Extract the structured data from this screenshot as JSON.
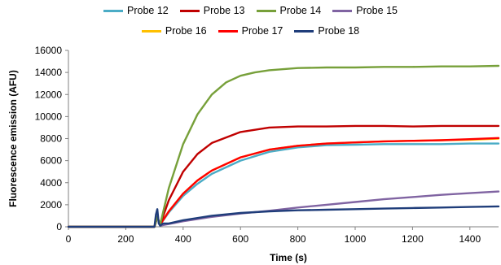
{
  "chart_data": {
    "type": "line",
    "xlabel": "Time (s)",
    "ylabel": "Fluorescence emission (AFU)",
    "xlim": [
      0,
      1500
    ],
    "ylim": [
      0,
      16000
    ],
    "x_ticks": [
      0,
      200,
      400,
      600,
      800,
      1000,
      1200,
      1400
    ],
    "y_ticks": [
      0,
      2000,
      4000,
      6000,
      8000,
      10000,
      12000,
      14000,
      16000
    ],
    "grid": false,
    "legend_placement": "top",
    "series": [
      {
        "name": "Probe 12",
        "color": "#4BACC6",
        "x": [
          0,
          300,
          310,
          320,
          350,
          400,
          450,
          500,
          600,
          700,
          800,
          900,
          1000,
          1100,
          1200,
          1300,
          1400,
          1500
        ],
        "y": [
          0,
          0,
          900,
          200,
          1300,
          2800,
          3900,
          4800,
          6000,
          6800,
          7200,
          7400,
          7450,
          7500,
          7500,
          7500,
          7550,
          7550
        ]
      },
      {
        "name": "Probe 13",
        "color": "#C00000",
        "x": [
          0,
          300,
          310,
          320,
          350,
          400,
          450,
          500,
          600,
          700,
          800,
          900,
          1000,
          1100,
          1200,
          1300,
          1400,
          1500
        ],
        "y": [
          0,
          0,
          900,
          200,
          2400,
          5000,
          6600,
          7600,
          8600,
          9000,
          9100,
          9100,
          9150,
          9150,
          9100,
          9150,
          9150,
          9150
        ]
      },
      {
        "name": "Probe 14",
        "color": "#77A03A",
        "x": [
          0,
          300,
          310,
          320,
          350,
          400,
          450,
          500,
          550,
          600,
          650,
          700,
          800,
          900,
          1000,
          1100,
          1200,
          1300,
          1400,
          1500
        ],
        "y": [
          0,
          0,
          900,
          200,
          3500,
          7500,
          10200,
          12000,
          13100,
          13700,
          14000,
          14200,
          14400,
          14450,
          14450,
          14500,
          14500,
          14550,
          14550,
          14600
        ]
      },
      {
        "name": "Probe 15",
        "color": "#8064A2",
        "x": [
          0,
          300,
          310,
          320,
          400,
          500,
          600,
          700,
          800,
          900,
          1000,
          1100,
          1200,
          1300,
          1400,
          1500
        ],
        "y": [
          0,
          0,
          900,
          100,
          500,
          900,
          1200,
          1450,
          1750,
          2000,
          2250,
          2500,
          2700,
          2900,
          3050,
          3200
        ]
      },
      {
        "name": "Probe 16",
        "color": "#FFC000",
        "x": [
          0,
          300,
          310,
          320,
          350,
          400,
          450,
          500,
          600,
          700,
          800,
          900,
          1000,
          1100,
          1200,
          1300,
          1400,
          1500
        ],
        "y": [
          0,
          0,
          900,
          200,
          1400,
          3000,
          4200,
          5100,
          6300,
          7000,
          7350,
          7550,
          7650,
          7750,
          7800,
          7850,
          7900,
          8000
        ]
      },
      {
        "name": "Probe 17",
        "color": "#FF0000",
        "x": [
          0,
          300,
          310,
          320,
          350,
          400,
          450,
          500,
          600,
          700,
          800,
          900,
          1000,
          1100,
          1200,
          1300,
          1400,
          1500
        ],
        "y": [
          0,
          0,
          900,
          200,
          1400,
          3000,
          4200,
          5100,
          6300,
          7000,
          7350,
          7550,
          7650,
          7750,
          7800,
          7850,
          7950,
          8050
        ]
      },
      {
        "name": "Probe 18",
        "color": "#1F3D7A",
        "x": [
          0,
          300,
          305,
          310,
          315,
          320,
          330,
          350,
          400,
          500,
          600,
          700,
          800,
          900,
          1000,
          1100,
          1200,
          1300,
          1400,
          1500
        ],
        "y": [
          0,
          0,
          1100,
          1600,
          300,
          100,
          300,
          300,
          600,
          1000,
          1250,
          1400,
          1500,
          1550,
          1600,
          1650,
          1700,
          1750,
          1800,
          1850
        ]
      }
    ]
  }
}
